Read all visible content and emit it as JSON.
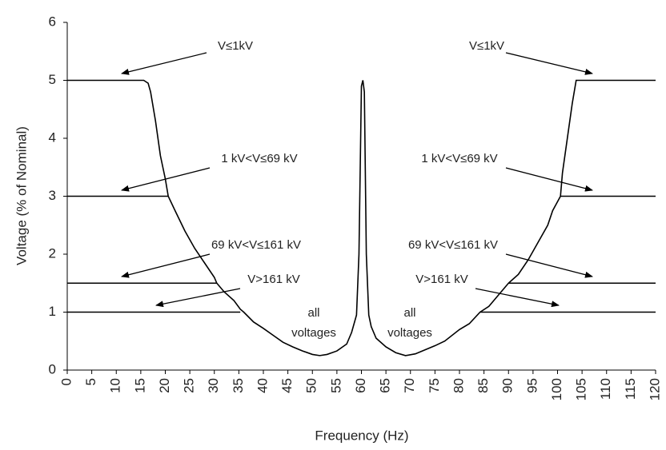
{
  "chart_data": {
    "type": "line",
    "xlabel": "Frequency (Hz)",
    "ylabel": "Voltage (% of Nominal)",
    "xlim": [
      0,
      120
    ],
    "ylim": [
      0,
      6
    ],
    "xticks": [
      0,
      5,
      10,
      15,
      20,
      25,
      30,
      35,
      40,
      45,
      50,
      55,
      60,
      65,
      70,
      75,
      80,
      85,
      90,
      95,
      100,
      105,
      110,
      115,
      120
    ],
    "yticks": [
      0,
      1,
      2,
      3,
      4,
      5,
      6
    ],
    "series": [
      {
        "color": "#000000",
        "x": [
          0,
          15.6,
          16.5,
          17,
          18,
          19,
          20,
          20.6,
          22,
          24,
          26,
          28,
          30,
          30.5,
          32,
          34,
          35.3,
          36,
          38,
          40,
          42,
          44,
          46,
          48,
          50,
          51.5,
          53,
          55,
          57,
          58,
          59,
          59.5,
          60,
          60.3,
          60.6,
          61,
          61.5,
          62,
          63,
          65,
          67,
          69,
          71,
          73,
          75,
          77,
          80,
          82,
          84.2,
          86,
          88,
          90,
          92,
          94,
          96,
          98,
          99,
          100.6,
          101,
          102,
          103,
          103.8,
          104.5,
          120
        ],
        "values": [
          5,
          5,
          4.95,
          4.8,
          4.3,
          3.7,
          3.3,
          3,
          2.75,
          2.4,
          2.1,
          1.85,
          1.6,
          1.5,
          1.35,
          1.2,
          1.05,
          1,
          0.83,
          0.72,
          0.6,
          0.48,
          0.4,
          0.33,
          0.27,
          0.25,
          0.27,
          0.33,
          0.45,
          0.65,
          0.95,
          2,
          4.9,
          5,
          4.8,
          2,
          0.95,
          0.75,
          0.55,
          0.4,
          0.3,
          0.25,
          0.28,
          0.35,
          0.42,
          0.5,
          0.7,
          0.8,
          1,
          1.1,
          1.3,
          1.5,
          1.65,
          1.9,
          2.2,
          2.5,
          2.75,
          3,
          3.4,
          4,
          4.6,
          5,
          5,
          5
        ]
      },
      {
        "color": "#000000",
        "x": [
          0,
          20.6,
          60,
          100.6,
          120
        ],
        "values": [
          3,
          3,
          null,
          3,
          3
        ]
      },
      {
        "color": "#000000",
        "x": [
          0,
          30.5,
          60,
          90,
          120
        ],
        "values": [
          1.5,
          1.5,
          null,
          1.5,
          1.5
        ]
      },
      {
        "color": "#000000",
        "x": [
          0,
          35.3,
          60,
          84.2,
          120
        ],
        "values": [
          1,
          1,
          null,
          1,
          1
        ]
      }
    ],
    "annotations": [
      "V≤1kV",
      "V≤1kV",
      "1 kV<V≤69 kV",
      "1 kV<V≤69 kV",
      "69 kV<V≤161 kV",
      "69 kV<V≤161 kV",
      "V>161 kV",
      "V>161 kV",
      "all",
      "voltages",
      "all",
      "voltages"
    ]
  }
}
